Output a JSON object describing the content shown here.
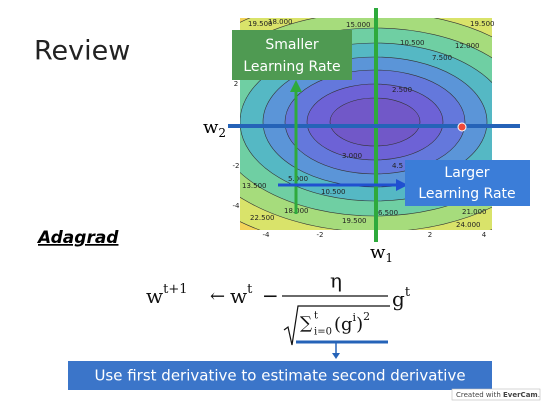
{
  "title": "Review",
  "figure": {
    "w2_axis": "w",
    "w2_sub": "2",
    "w1_axis": "w",
    "w1_sub": "1",
    "x_tick_labels": [
      "-4",
      "-2",
      "2",
      "4"
    ],
    "y_tick_labels": [
      "2",
      "-2",
      "-4"
    ],
    "contour_labels": [
      "19.500",
      "18.000",
      "15.000",
      "10.500",
      "12.000",
      "19.500",
      "7.500",
      "2.500",
      "3.000",
      "4.5",
      "5.000",
      "10.500",
      "13.500",
      "18.000",
      "19.500",
      "6.500",
      "21.000",
      "22.500",
      "24.000"
    ],
    "smaller_box": [
      "Smaller",
      "Learning Rate"
    ],
    "larger_box": [
      "Larger",
      "Learning Rate"
    ]
  },
  "method": "Adagrad",
  "formula": {
    "w_next": "w",
    "w_next_sup": "t+1",
    "arrow": "←",
    "w": "w",
    "w_sup": "t",
    "minus": "−",
    "numerator": "η",
    "sum": "∑",
    "sum_sub": "i=0",
    "sum_sup": "t",
    "sum_term": "(g",
    "sum_term_sup": "i",
    "sum_term_end": ")",
    "square": "2",
    "g": "g",
    "g_sup": "t"
  },
  "banner": "Use first derivative to estimate second derivative",
  "watermark": {
    "prefix": "Created with ",
    "brand": "EverCam",
    "suffix": "."
  }
}
